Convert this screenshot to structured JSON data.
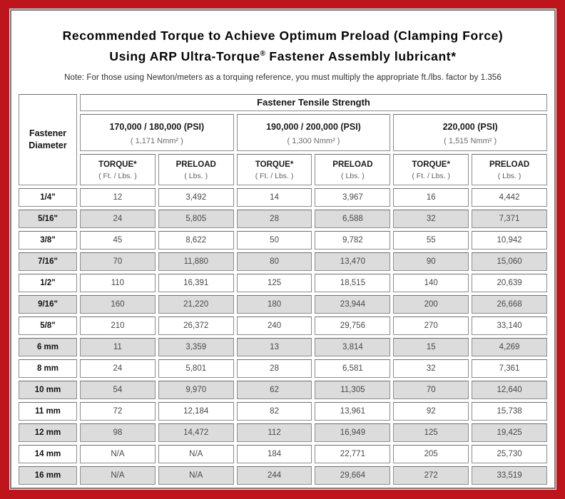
{
  "page": {
    "title_line1": "Recommended Torque to Achieve Optimum Preload (Clamping Force)",
    "title_line2_prefix": "Using ARP Ultra-Torque",
    "title_line2_sup": "®",
    "title_line2_suffix": " Fastener Assembly lubricant*",
    "note": "Note: For those using Newton/meters as a torquing reference, you must multiply the appropriate ft./lbs. factor by 1.356"
  },
  "colors": {
    "frame_red": "#be151d",
    "header_gray": "#d3d3d3",
    "shaded_row_gray": "#dcdcdc",
    "grid_line_gray": "#8d8d8d"
  },
  "table": {
    "corner_line1": "Fastener",
    "corner_line2": "Diameter",
    "tensile_strength_header": "Fastener Tensile Strength",
    "groups": [
      {
        "psi": "170,000 / 180,000 (PSI)",
        "nmm": "( 1,171 Nmm² )"
      },
      {
        "psi": "190,000 / 200,000 (PSI)",
        "nmm": "( 1,300 Nmm² )"
      },
      {
        "psi": "220,000 (PSI)",
        "nmm": "( 1,515 Nmm² )"
      }
    ],
    "torque_label": "TORQUE*",
    "torque_unit": "( Ft. / Lbs. )",
    "preload_label": "PRELOAD",
    "preload_unit": "( Lbs. )",
    "rows": [
      {
        "dia": "1/4\"",
        "values": [
          "12",
          "3,492",
          "14",
          "3,967",
          "16",
          "4,442"
        ]
      },
      {
        "dia": "5/16\"",
        "values": [
          "24",
          "5,805",
          "28",
          "6,588",
          "32",
          "7,371"
        ]
      },
      {
        "dia": "3/8\"",
        "values": [
          "45",
          "8,622",
          "50",
          "9,782",
          "55",
          "10,942"
        ]
      },
      {
        "dia": "7/16\"",
        "values": [
          "70",
          "11,880",
          "80",
          "13,470",
          "90",
          "15,060"
        ]
      },
      {
        "dia": "1/2\"",
        "values": [
          "110",
          "16,391",
          "125",
          "18,515",
          "140",
          "20,639"
        ]
      },
      {
        "dia": "9/16\"",
        "values": [
          "160",
          "21,220",
          "180",
          "23,944",
          "200",
          "26,668"
        ]
      },
      {
        "dia": "5/8\"",
        "values": [
          "210",
          "26,372",
          "240",
          "29,756",
          "270",
          "33,140"
        ]
      },
      {
        "dia": "6 mm",
        "values": [
          "11",
          "3,359",
          "13",
          "3,814",
          "15",
          "4,269"
        ]
      },
      {
        "dia": "8 mm",
        "values": [
          "24",
          "5,801",
          "28",
          "6,581",
          "32",
          "7,361"
        ]
      },
      {
        "dia": "10 mm",
        "values": [
          "54",
          "9,970",
          "62",
          "11,305",
          "70",
          "12,640"
        ]
      },
      {
        "dia": "11 mm",
        "values": [
          "72",
          "12,184",
          "82",
          "13,961",
          "92",
          "15,738"
        ]
      },
      {
        "dia": "12 mm",
        "values": [
          "98",
          "14,472",
          "112",
          "16,949",
          "125",
          "19,425"
        ]
      },
      {
        "dia": "14 mm",
        "values": [
          "N/A",
          "N/A",
          "184",
          "22,771",
          "205",
          "25,730"
        ]
      },
      {
        "dia": "16 mm",
        "values": [
          "N/A",
          "N/A",
          "244",
          "29,664",
          "272",
          "33,519"
        ]
      }
    ]
  }
}
